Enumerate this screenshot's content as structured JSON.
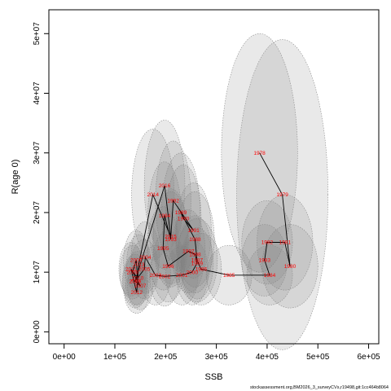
{
  "chart_data": {
    "type": "scatter",
    "title": "",
    "xlabel": "SSB",
    "ylabel": "R(age 0)",
    "xlim": [
      -30000,
      620000
    ],
    "ylim": [
      -2000000,
      54000000
    ],
    "x_ticks": [
      0,
      100000,
      200000,
      300000,
      400000,
      500000,
      600000
    ],
    "x_tick_labels": [
      "0e+00",
      "1e+05",
      "2e+05",
      "3e+05",
      "4e+05",
      "5e+05",
      "6e+05"
    ],
    "y_ticks": [
      0,
      10000000,
      20000000,
      30000000,
      40000000,
      50000000
    ],
    "y_tick_labels": [
      "0e+00",
      "1e+07",
      "2e+07",
      "3e+07",
      "4e+07",
      "5e+07"
    ],
    "grid": false,
    "legend": "none",
    "colors": {
      "ellipse_fill": "#7a7a7a",
      "ellipse_stroke": "#8c8c8c",
      "path": "#000000",
      "labels": "#ff0000"
    },
    "points": [
      {
        "year": "1978",
        "x": 385000,
        "y": 30000000,
        "rx": 75000,
        "ry": 20000000
      },
      {
        "year": "1979",
        "x": 430000,
        "y": 23000000,
        "rx": 90000,
        "ry": 26000000
      },
      {
        "year": "1980",
        "x": 445000,
        "y": 11000000,
        "rx": 55000,
        "ry": 7000000
      },
      {
        "year": "1981",
        "x": 435000,
        "y": 15000000,
        "rx": 55000,
        "ry": 8000000
      },
      {
        "year": "1982",
        "x": 400000,
        "y": 15000000,
        "rx": 50000,
        "ry": 7000000
      },
      {
        "year": "1983",
        "x": 395000,
        "y": 12000000,
        "rx": 45000,
        "ry": 6000000
      },
      {
        "year": "1984",
        "x": 405000,
        "y": 9500000,
        "rx": 45000,
        "ry": 5000000
      },
      {
        "year": "1985",
        "x": 325000,
        "y": 9500000,
        "rx": 45000,
        "ry": 5000000
      },
      {
        "year": "1986",
        "x": 270000,
        "y": 10500000,
        "rx": 40000,
        "ry": 6000000
      },
      {
        "year": "1987",
        "x": 262000,
        "y": 12000000,
        "rx": 40000,
        "ry": 7000000
      },
      {
        "year": "1988",
        "x": 258000,
        "y": 15500000,
        "rx": 38000,
        "ry": 8000000
      },
      {
        "year": "1989",
        "x": 230000,
        "y": 20000000,
        "rx": 38000,
        "ry": 10000000
      },
      {
        "year": "1990",
        "x": 235000,
        "y": 19000000,
        "rx": 35000,
        "ry": 9000000
      },
      {
        "year": "1991",
        "x": 255000,
        "y": 17000000,
        "rx": 35000,
        "ry": 8000000
      },
      {
        "year": "1992",
        "x": 215000,
        "y": 22000000,
        "rx": 35000,
        "ry": 10000000
      },
      {
        "year": "1993",
        "x": 210000,
        "y": 15500000,
        "rx": 35000,
        "ry": 8000000
      },
      {
        "year": "1994",
        "x": 198000,
        "y": 19500000,
        "rx": 33000,
        "ry": 9000000
      },
      {
        "year": "1995",
        "x": 195000,
        "y": 14000000,
        "rx": 32000,
        "ry": 7000000
      },
      {
        "year": "1996",
        "x": 205000,
        "y": 11000000,
        "rx": 32000,
        "ry": 6000000
      },
      {
        "year": "1997",
        "x": 245000,
        "y": 13500000,
        "rx": 33000,
        "ry": 7000000
      },
      {
        "year": "1998",
        "x": 258000,
        "y": 13000000,
        "rx": 33000,
        "ry": 6500000
      },
      {
        "year": "1999",
        "x": 262000,
        "y": 11500000,
        "rx": 32000,
        "ry": 6000000
      },
      {
        "year": "2000",
        "x": 252000,
        "y": 10000000,
        "rx": 32000,
        "ry": 5500000
      },
      {
        "year": "2001",
        "x": 232000,
        "y": 9500000,
        "rx": 32000,
        "ry": 5000000
      },
      {
        "year": "2002",
        "x": 198000,
        "y": 9300000,
        "rx": 30000,
        "ry": 5000000
      },
      {
        "year": "2003",
        "x": 180000,
        "y": 9500000,
        "rx": 30000,
        "ry": 5000000
      },
      {
        "year": "2004",
        "x": 160000,
        "y": 12500000,
        "rx": 28000,
        "ry": 6000000
      },
      {
        "year": "2005",
        "x": 158000,
        "y": 10500000,
        "rx": 28000,
        "ry": 5000000
      },
      {
        "year": "2006",
        "x": 140000,
        "y": 8500000,
        "rx": 25000,
        "ry": 4500000
      },
      {
        "year": "2007",
        "x": 150000,
        "y": 7700000,
        "rx": 25000,
        "ry": 4000000
      },
      {
        "year": "2008",
        "x": 135000,
        "y": 10000000,
        "rx": 25000,
        "ry": 4500000
      },
      {
        "year": "2009",
        "x": 142000,
        "y": 12000000,
        "rx": 25000,
        "ry": 5000000
      },
      {
        "year": "2010",
        "x": 145000,
        "y": 9000000,
        "rx": 25000,
        "ry": 4500000
      },
      {
        "year": "2011",
        "x": 132000,
        "y": 10500000,
        "rx": 24000,
        "ry": 4500000
      },
      {
        "year": "2012",
        "x": 143000,
        "y": 6600000,
        "rx": 24000,
        "ry": 3500000
      },
      {
        "year": "2013",
        "x": 147000,
        "y": 11300000,
        "rx": 24000,
        "ry": 5000000
      },
      {
        "year": "2014",
        "x": 175000,
        "y": 23000000,
        "rx": 42000,
        "ry": 11000000
      },
      {
        "year": "2015",
        "x": 210000,
        "y": 16000000,
        "rx": 34000,
        "ry": 8000000
      },
      {
        "year": "2016",
        "x": 198000,
        "y": 24500000,
        "rx": 40000,
        "ry": 11000000
      },
      {
        "year": "2017",
        "x": 140000,
        "y": 8500000,
        "rx": 24000,
        "ry": 4000000
      }
    ]
  },
  "credit_text": "stockassessment.org,BM2026_3_surveyCVs,r19498,git:1cc464b8064"
}
